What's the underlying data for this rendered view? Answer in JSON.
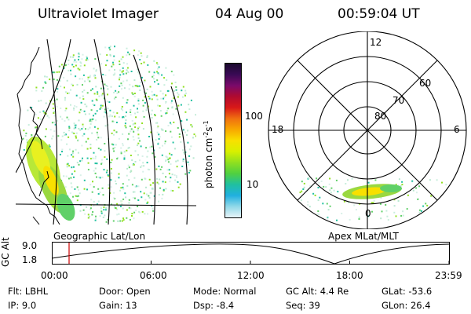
{
  "header": {
    "title": "Ultraviolet Imager",
    "date": "04 Aug 00",
    "time": "00:59:04 UT"
  },
  "colorbar": {
    "unit": "photon cm",
    "unit_sup1": "-2",
    "unit_mid": "s",
    "unit_sup2": "-1",
    "ticks": [
      "100",
      "10"
    ],
    "colors": [
      "#1a0a2e",
      "#3a0a55",
      "#7a0a6a",
      "#b00a30",
      "#d81818",
      "#f07010",
      "#f8a800",
      "#f8e000",
      "#d8f000",
      "#90e020",
      "#50d040",
      "#20c0a0",
      "#20b0e0",
      "#90d8e8",
      "#e8f4f8"
    ]
  },
  "polar": {
    "lat_labels": [
      "80",
      "70",
      "60"
    ],
    "mlt_labels": {
      "top": "12",
      "left": "18",
      "right": "6",
      "bottom": "0"
    }
  },
  "panel_titles": {
    "geo": "Geographic Lat/Lon",
    "apex": "Apex MLat/MLT"
  },
  "timeline": {
    "axis_label": "GC Alt",
    "y_ticks": [
      "9.0",
      "1.8"
    ],
    "x_ticks": [
      "00:00",
      "06:00",
      "12:00",
      "18:00",
      "23:59"
    ],
    "marker_time": "01:00"
  },
  "info": {
    "flt": "Flt: LBHL",
    "ip": "IP:  9.0",
    "door": "Door: Open",
    "gain": "Gain: 13",
    "mode": "Mode: Normal",
    "dsp": "Dsp:   -8.4",
    "gcalt": "GC Alt: 4.4 Re",
    "seq": "Seq: 39",
    "glat": "GLat:  -53.6",
    "glon": "GLon:  26.4"
  }
}
